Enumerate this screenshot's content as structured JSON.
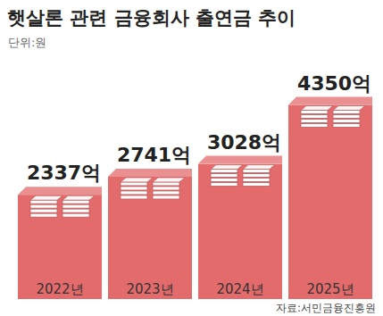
{
  "chart_data": {
    "type": "bar",
    "title": "햇살론 관련 금융회사 출연금 추이",
    "subtitle": "단위:원",
    "source": "자료:서민금융진흥원",
    "categories": [
      "2022년",
      "2023년",
      "2024년",
      "2025년"
    ],
    "values": [
      2337,
      2741,
      3028,
      4350
    ],
    "value_labels": [
      "2337억",
      "2741억",
      "3028억",
      "4350억"
    ],
    "color": "#e36b6c",
    "ylim": [
      0,
      4800
    ],
    "data_labels": true,
    "tick_labels": false,
    "grid": false
  }
}
